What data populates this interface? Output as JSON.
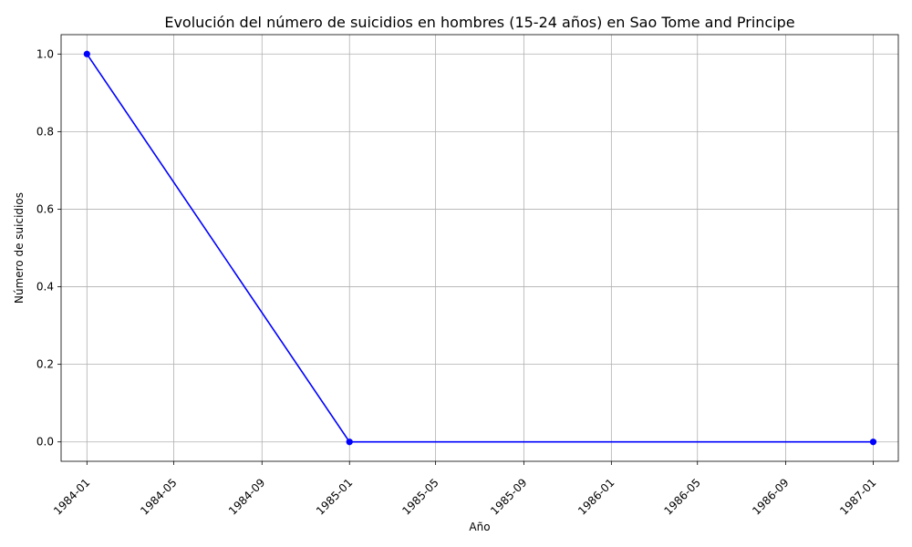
{
  "chart_data": {
    "type": "line",
    "title": "Evolución del número de suicidios en hombres (15-24 años) en Sao Tome and Principe",
    "xlabel": "Año",
    "ylabel": "Número de suicidios",
    "x_ticks": [
      "1984-01",
      "1984-05",
      "1984-09",
      "1985-01",
      "1985-05",
      "1985-09",
      "1986-01",
      "1986-05",
      "1986-09",
      "1987-01"
    ],
    "y_ticks": [
      "0.0",
      "0.2",
      "0.4",
      "0.6",
      "0.8",
      "1.0"
    ],
    "ylim": [
      -0.05,
      1.05
    ],
    "xlim": [
      "1983-11-26",
      "1987-02-05"
    ],
    "grid": true,
    "series": [
      {
        "color": "#0000ff",
        "marker": "circle",
        "points": [
          {
            "x": "1984-01-01",
            "y": 1
          },
          {
            "x": "1985-01-01",
            "y": 0
          },
          {
            "x": "1987-01-01",
            "y": 0
          }
        ]
      }
    ]
  }
}
